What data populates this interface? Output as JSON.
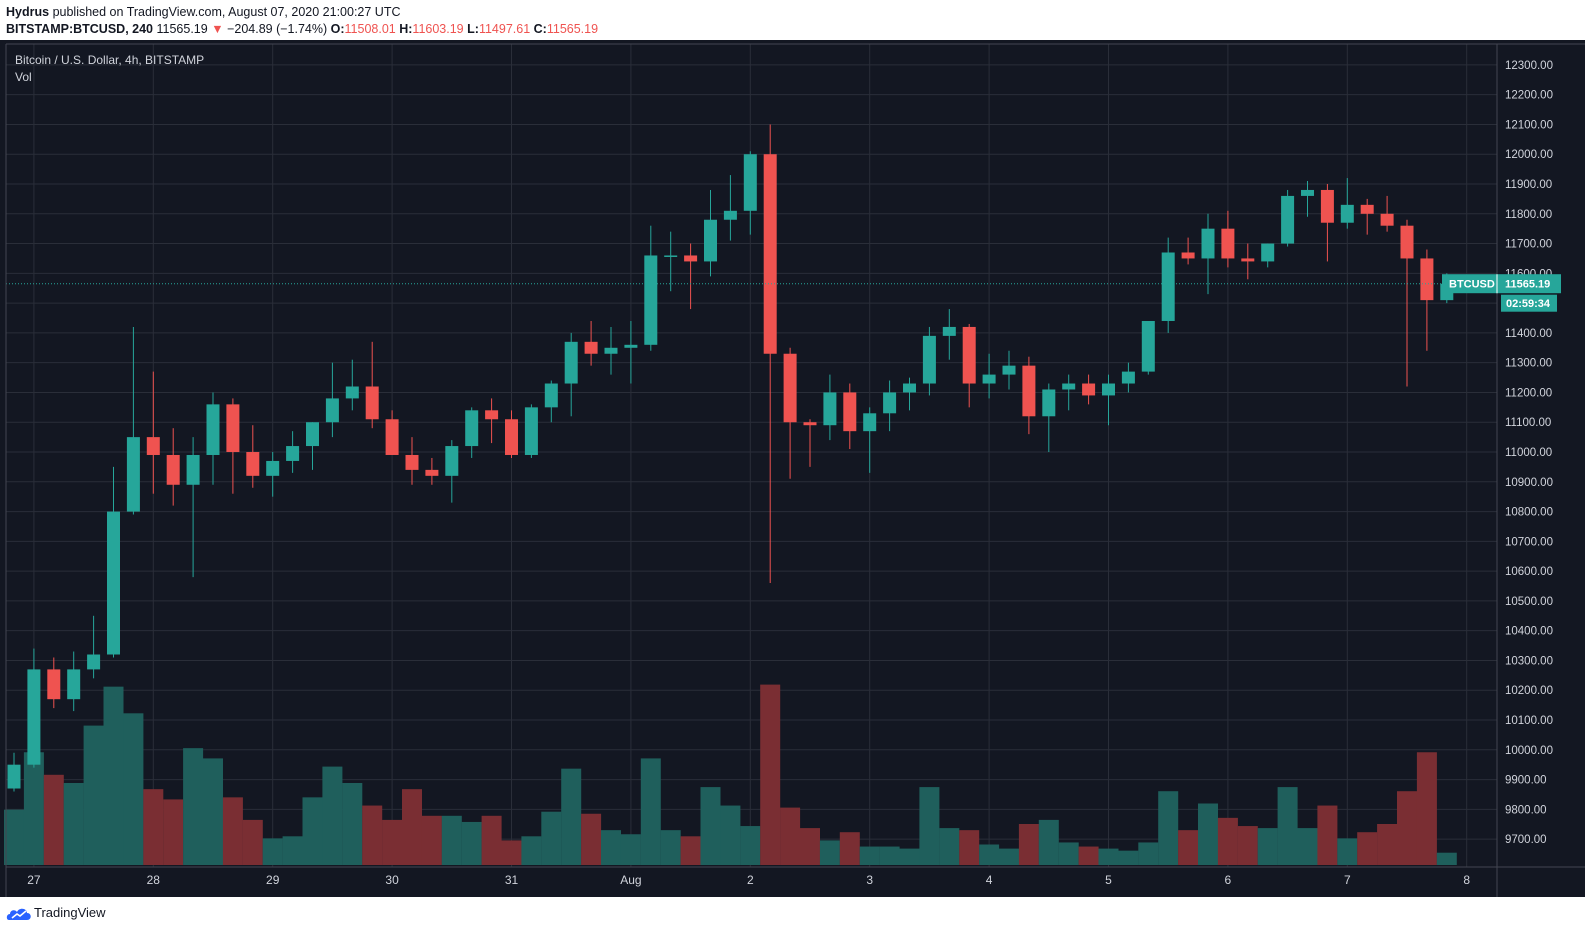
{
  "header": {
    "author": "Hydrus",
    "published_text": "published on TradingView.com, August 07, 2020 21:00:27 UTC",
    "symbol": "BITSTAMP:BTCUSD, 240",
    "last": "11565.19",
    "change_arrow": "▼",
    "change": "−204.89 (−1.74%)",
    "o_label": "O:",
    "o_value": "11508.01",
    "h_label": "H:",
    "h_value": "11603.19",
    "l_label": "L:",
    "l_value": "11497.61",
    "c_label": "C:",
    "c_value": "11565.19"
  },
  "legend": {
    "title": "Bitcoin / U.S. Dollar, 4h, BITSTAMP",
    "volume_label": "Vol"
  },
  "price_tags": {
    "symbol": "BTCUSD",
    "price": "11565.19",
    "countdown": "02:59:34"
  },
  "footer": {
    "logo_text": "TradingView",
    "logo_icon": "tradingview-cloud-icon"
  },
  "colors": {
    "up": "#26a69a",
    "down": "#ef5350",
    "volume_up": "#1f5f5c",
    "volume_down": "#7a2e33",
    "background": "#131722",
    "grid": "#2a2e39"
  },
  "chart_data": {
    "type": "candlestick",
    "interval": "4h",
    "ylim": [
      9640,
      12350
    ],
    "y_ticks": [
      9700,
      9800,
      9900,
      10000,
      10100,
      10200,
      10300,
      10400,
      10500,
      10600,
      10700,
      10800,
      10900,
      11000,
      11100,
      11200,
      11300,
      11400,
      11500,
      11600,
      11700,
      11800,
      11900,
      12000,
      12100,
      12200,
      12300
    ],
    "x_ticks": [
      {
        "label": "27",
        "index": 1
      },
      {
        "label": "28",
        "index": 7
      },
      {
        "label": "29",
        "index": 13
      },
      {
        "label": "30",
        "index": 19
      },
      {
        "label": "31",
        "index": 25
      },
      {
        "label": "Aug",
        "index": 31
      },
      {
        "label": "2",
        "index": 37
      },
      {
        "label": "3",
        "index": 43
      },
      {
        "label": "4",
        "index": 49
      },
      {
        "label": "5",
        "index": 55
      },
      {
        "label": "6",
        "index": 61
      },
      {
        "label": "7",
        "index": 67
      },
      {
        "label": "8",
        "index": 73
      }
    ],
    "current_price": 11565.19,
    "volume_max": 1.0,
    "candles": [
      {
        "o": 9870,
        "h": 9990,
        "l": 9860,
        "c": 9950,
        "v": 0.27
      },
      {
        "o": 9950,
        "h": 10340,
        "l": 9940,
        "c": 10270,
        "v": 0.55
      },
      {
        "o": 10270,
        "h": 10310,
        "l": 10140,
        "c": 10170,
        "v": 0.44
      },
      {
        "o": 10170,
        "h": 10330,
        "l": 10130,
        "c": 10270,
        "v": 0.4
      },
      {
        "o": 10270,
        "h": 10450,
        "l": 10240,
        "c": 10320,
        "v": 0.68
      },
      {
        "o": 10320,
        "h": 10950,
        "l": 10310,
        "c": 10800,
        "v": 0.87
      },
      {
        "o": 10800,
        "h": 11420,
        "l": 10790,
        "c": 11050,
        "v": 0.74
      },
      {
        "o": 11050,
        "h": 11270,
        "l": 10860,
        "c": 10990,
        "v": 0.37
      },
      {
        "o": 10990,
        "h": 11080,
        "l": 10820,
        "c": 10890,
        "v": 0.32
      },
      {
        "o": 10890,
        "h": 11050,
        "l": 10580,
        "c": 10990,
        "v": 0.57
      },
      {
        "o": 10990,
        "h": 11200,
        "l": 10890,
        "c": 11160,
        "v": 0.52
      },
      {
        "o": 11160,
        "h": 11180,
        "l": 10860,
        "c": 11000,
        "v": 0.33
      },
      {
        "o": 11000,
        "h": 11090,
        "l": 10880,
        "c": 10920,
        "v": 0.22
      },
      {
        "o": 10920,
        "h": 11000,
        "l": 10850,
        "c": 10970,
        "v": 0.13
      },
      {
        "o": 10970,
        "h": 11070,
        "l": 10930,
        "c": 11020,
        "v": 0.14
      },
      {
        "o": 11020,
        "h": 11100,
        "l": 10940,
        "c": 11100,
        "v": 0.33
      },
      {
        "o": 11100,
        "h": 11300,
        "l": 11050,
        "c": 11180,
        "v": 0.48
      },
      {
        "o": 11180,
        "h": 11310,
        "l": 11140,
        "c": 11220,
        "v": 0.4
      },
      {
        "o": 11220,
        "h": 11370,
        "l": 11080,
        "c": 11110,
        "v": 0.29
      },
      {
        "o": 11110,
        "h": 11140,
        "l": 10990,
        "c": 10990,
        "v": 0.22
      },
      {
        "o": 10990,
        "h": 11050,
        "l": 10890,
        "c": 10940,
        "v": 0.37
      },
      {
        "o": 10940,
        "h": 10980,
        "l": 10890,
        "c": 10920,
        "v": 0.24
      },
      {
        "o": 10920,
        "h": 11040,
        "l": 10830,
        "c": 11020,
        "v": 0.24
      },
      {
        "o": 11020,
        "h": 11150,
        "l": 10980,
        "c": 11140,
        "v": 0.21
      },
      {
        "o": 11140,
        "h": 11180,
        "l": 11030,
        "c": 11110,
        "v": 0.24
      },
      {
        "o": 11110,
        "h": 11140,
        "l": 10980,
        "c": 10990,
        "v": 0.12
      },
      {
        "o": 10990,
        "h": 11160,
        "l": 10980,
        "c": 11150,
        "v": 0.14
      },
      {
        "o": 11150,
        "h": 11240,
        "l": 11100,
        "c": 11230,
        "v": 0.26
      },
      {
        "o": 11230,
        "h": 11400,
        "l": 11120,
        "c": 11370,
        "v": 0.47
      },
      {
        "o": 11370,
        "h": 11440,
        "l": 11290,
        "c": 11330,
        "v": 0.25
      },
      {
        "o": 11330,
        "h": 11420,
        "l": 11260,
        "c": 11350,
        "v": 0.17
      },
      {
        "o": 11350,
        "h": 11440,
        "l": 11230,
        "c": 11360,
        "v": 0.15
      },
      {
        "o": 11360,
        "h": 11760,
        "l": 11340,
        "c": 11660,
        "v": 0.52
      },
      {
        "o": 11660,
        "h": 11740,
        "l": 11540,
        "c": 11660,
        "v": 0.17
      },
      {
        "o": 11660,
        "h": 11700,
        "l": 11480,
        "c": 11640,
        "v": 0.14
      },
      {
        "o": 11640,
        "h": 11880,
        "l": 11590,
        "c": 11780,
        "v": 0.38
      },
      {
        "o": 11780,
        "h": 11930,
        "l": 11710,
        "c": 11810,
        "v": 0.29
      },
      {
        "o": 11810,
        "h": 12010,
        "l": 11730,
        "c": 12000,
        "v": 0.19
      },
      {
        "o": 12000,
        "h": 12100,
        "l": 10560,
        "c": 11330,
        "v": 0.88
      },
      {
        "o": 11330,
        "h": 11350,
        "l": 10910,
        "c": 11100,
        "v": 0.28
      },
      {
        "o": 11100,
        "h": 11110,
        "l": 10950,
        "c": 11090,
        "v": 0.18
      },
      {
        "o": 11090,
        "h": 11260,
        "l": 11040,
        "c": 11200,
        "v": 0.12
      },
      {
        "o": 11200,
        "h": 11230,
        "l": 11010,
        "c": 11070,
        "v": 0.16
      },
      {
        "o": 11070,
        "h": 11150,
        "l": 10930,
        "c": 11130,
        "v": 0.09
      },
      {
        "o": 11130,
        "h": 11240,
        "l": 11070,
        "c": 11200,
        "v": 0.09
      },
      {
        "o": 11200,
        "h": 11250,
        "l": 11140,
        "c": 11230,
        "v": 0.08
      },
      {
        "o": 11230,
        "h": 11420,
        "l": 11190,
        "c": 11390,
        "v": 0.38
      },
      {
        "o": 11390,
        "h": 11480,
        "l": 11310,
        "c": 11420,
        "v": 0.18
      },
      {
        "o": 11420,
        "h": 11430,
        "l": 11150,
        "c": 11230,
        "v": 0.17
      },
      {
        "o": 11230,
        "h": 11330,
        "l": 11180,
        "c": 11260,
        "v": 0.1
      },
      {
        "o": 11260,
        "h": 11340,
        "l": 11210,
        "c": 11290,
        "v": 0.08
      },
      {
        "o": 11290,
        "h": 11320,
        "l": 11060,
        "c": 11120,
        "v": 0.2
      },
      {
        "o": 11120,
        "h": 11230,
        "l": 11000,
        "c": 11210,
        "v": 0.22
      },
      {
        "o": 11210,
        "h": 11260,
        "l": 11140,
        "c": 11230,
        "v": 0.11
      },
      {
        "o": 11230,
        "h": 11260,
        "l": 11160,
        "c": 11190,
        "v": 0.09
      },
      {
        "o": 11190,
        "h": 11260,
        "l": 11090,
        "c": 11230,
        "v": 0.08
      },
      {
        "o": 11230,
        "h": 11300,
        "l": 11200,
        "c": 11270,
        "v": 0.07
      },
      {
        "o": 11270,
        "h": 11440,
        "l": 11260,
        "c": 11440,
        "v": 0.11
      },
      {
        "o": 11440,
        "h": 11720,
        "l": 11400,
        "c": 11670,
        "v": 0.36
      },
      {
        "o": 11670,
        "h": 11720,
        "l": 11630,
        "c": 11650,
        "v": 0.17
      },
      {
        "o": 11650,
        "h": 11800,
        "l": 11530,
        "c": 11750,
        "v": 0.3
      },
      {
        "o": 11750,
        "h": 11810,
        "l": 11620,
        "c": 11650,
        "v": 0.23
      },
      {
        "o": 11650,
        "h": 11700,
        "l": 11580,
        "c": 11640,
        "v": 0.19
      },
      {
        "o": 11640,
        "h": 11700,
        "l": 11620,
        "c": 11700,
        "v": 0.18
      },
      {
        "o": 11700,
        "h": 11880,
        "l": 11690,
        "c": 11860,
        "v": 0.38
      },
      {
        "o": 11860,
        "h": 11910,
        "l": 11790,
        "c": 11880,
        "v": 0.18
      },
      {
        "o": 11880,
        "h": 11900,
        "l": 11640,
        "c": 11770,
        "v": 0.29
      },
      {
        "o": 11770,
        "h": 11920,
        "l": 11750,
        "c": 11830,
        "v": 0.13
      },
      {
        "o": 11830,
        "h": 11850,
        "l": 11730,
        "c": 11800,
        "v": 0.16
      },
      {
        "o": 11800,
        "h": 11860,
        "l": 11740,
        "c": 11760,
        "v": 0.2
      },
      {
        "o": 11760,
        "h": 11780,
        "l": 11220,
        "c": 11650,
        "v": 0.36
      },
      {
        "o": 11650,
        "h": 11680,
        "l": 11340,
        "c": 11510,
        "v": 0.55
      },
      {
        "o": 11510,
        "h": 11600,
        "l": 11500,
        "c": 11565,
        "v": 0.06
      }
    ]
  }
}
